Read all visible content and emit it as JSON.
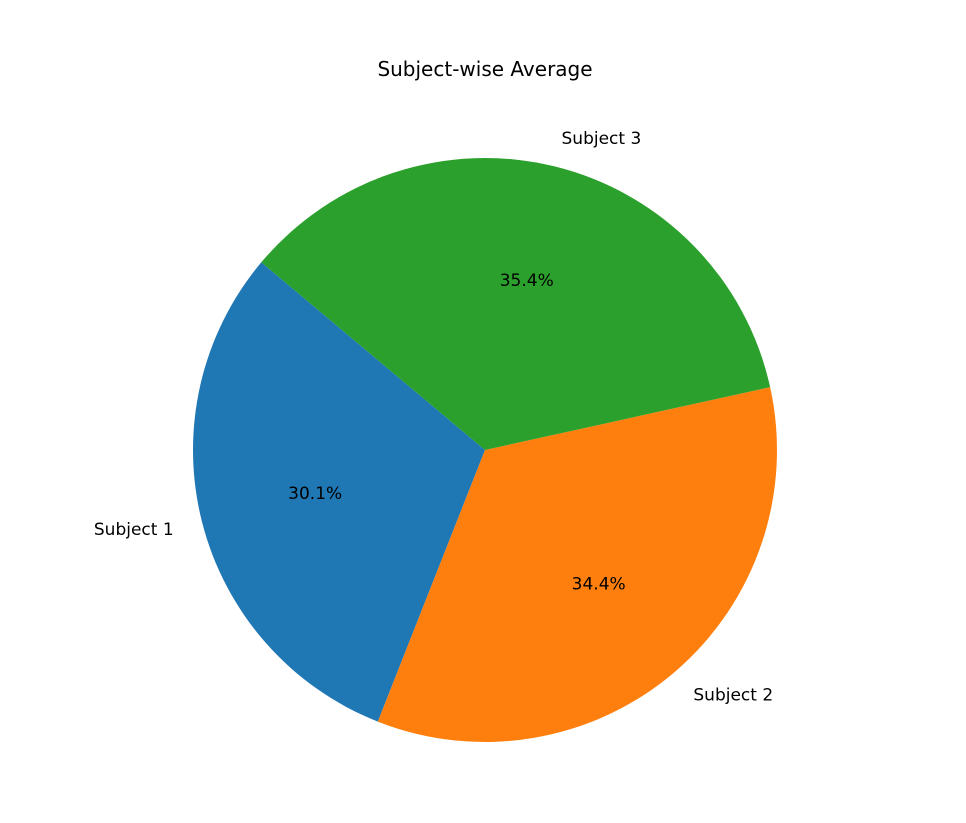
{
  "chart_data": {
    "type": "pie",
    "title": "Subject-wise Average",
    "labels": [
      "Subject 1",
      "Subject 2",
      "Subject 3"
    ],
    "values": [
      30.1,
      34.4,
      35.4
    ],
    "percent_labels": [
      "30.1%",
      "34.4%",
      "35.4%"
    ],
    "colors": [
      "#1f77b4",
      "#ff7f0e",
      "#2ca02c"
    ],
    "start_angle_deg": 140,
    "direction": "counterclockwise",
    "legend": "none"
  }
}
